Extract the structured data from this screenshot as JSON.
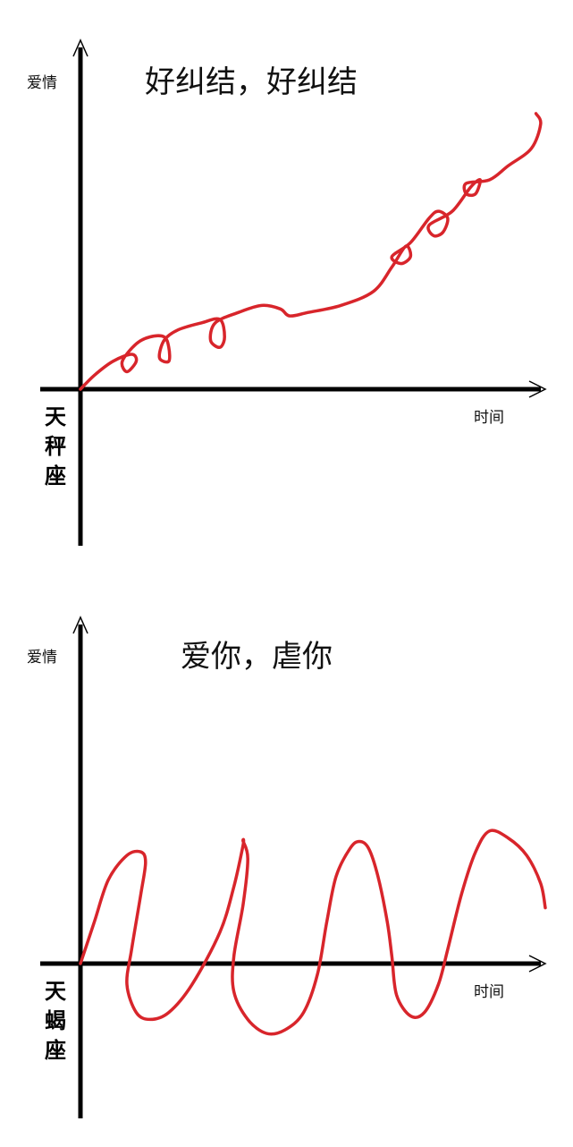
{
  "chart_data": [
    {
      "type": "line",
      "title": "好纠结，好纠结",
      "xlabel": "时间",
      "ylabel": "爱情",
      "sign": [
        "天",
        "秤",
        "座"
      ],
      "grid": false,
      "xlim": [
        0,
        100
      ],
      "ylim": [
        -45,
        100
      ],
      "series_color": "#d8252b",
      "points": [
        [
          0,
          0
        ],
        [
          3,
          4
        ],
        [
          7,
          8
        ],
        [
          11,
          10
        ],
        [
          12,
          8
        ],
        [
          10,
          5
        ],
        [
          9,
          8
        ],
        [
          12,
          13
        ],
        [
          15,
          15
        ],
        [
          18,
          15
        ],
        [
          19,
          12
        ],
        [
          19,
          8
        ],
        [
          17,
          9
        ],
        [
          18,
          14
        ],
        [
          21,
          17
        ],
        [
          26,
          19
        ],
        [
          30,
          20
        ],
        [
          31,
          15
        ],
        [
          30,
          12
        ],
        [
          28,
          14
        ],
        [
          29,
          19
        ],
        [
          34,
          22
        ],
        [
          39,
          24
        ],
        [
          43,
          23
        ],
        [
          45,
          21
        ],
        [
          49,
          22
        ],
        [
          56,
          24
        ],
        [
          63,
          28
        ],
        [
          67,
          35
        ],
        [
          70,
          41
        ],
        [
          71,
          38
        ],
        [
          69,
          36
        ],
        [
          67,
          38
        ],
        [
          71,
          42
        ],
        [
          75,
          49
        ],
        [
          77,
          51
        ],
        [
          79,
          49
        ],
        [
          78,
          45
        ],
        [
          76,
          44
        ],
        [
          75,
          47
        ],
        [
          80,
          51
        ],
        [
          84,
          58
        ],
        [
          86,
          60
        ],
        [
          85,
          56
        ],
        [
          83,
          56
        ],
        [
          83,
          59
        ],
        [
          88,
          60
        ],
        [
          92,
          64
        ],
        [
          97,
          69
        ],
        [
          99,
          76
        ],
        [
          98,
          79
        ]
      ]
    },
    {
      "type": "line",
      "title": "爱你，虐你",
      "xlabel": "时间",
      "ylabel": "爱情",
      "sign": [
        "天",
        "蝎",
        "座"
      ],
      "grid": false,
      "xlim": [
        0,
        100
      ],
      "ylim": [
        -44,
        99
      ],
      "series_color": "#d8252b",
      "points": [
        [
          0,
          0
        ],
        [
          3,
          12
        ],
        [
          6,
          24
        ],
        [
          10,
          31
        ],
        [
          13,
          32
        ],
        [
          14,
          29
        ],
        [
          13,
          20
        ],
        [
          11,
          4
        ],
        [
          10,
          -6
        ],
        [
          12,
          -14
        ],
        [
          15,
          -16
        ],
        [
          19,
          -14
        ],
        [
          24,
          -6
        ],
        [
          30,
          9
        ],
        [
          33,
          22
        ],
        [
          35,
          34
        ],
        [
          35,
          35
        ],
        [
          36,
          30
        ],
        [
          35,
          17
        ],
        [
          33,
          2
        ],
        [
          33,
          -8
        ],
        [
          36,
          -16
        ],
        [
          40,
          -20
        ],
        [
          44,
          -19
        ],
        [
          48,
          -14
        ],
        [
          51,
          -3
        ],
        [
          53,
          12
        ],
        [
          55,
          25
        ],
        [
          58,
          33
        ],
        [
          60,
          35
        ],
        [
          62,
          33
        ],
        [
          64,
          25
        ],
        [
          66,
          12
        ],
        [
          67,
          2
        ],
        [
          68,
          -9
        ],
        [
          71,
          -15
        ],
        [
          74,
          -14
        ],
        [
          77,
          -6
        ],
        [
          79,
          4
        ],
        [
          82,
          20
        ],
        [
          85,
          32
        ],
        [
          88,
          38
        ],
        [
          92,
          36
        ],
        [
          96,
          31
        ],
        [
          99,
          23
        ],
        [
          100,
          16
        ]
      ]
    }
  ]
}
